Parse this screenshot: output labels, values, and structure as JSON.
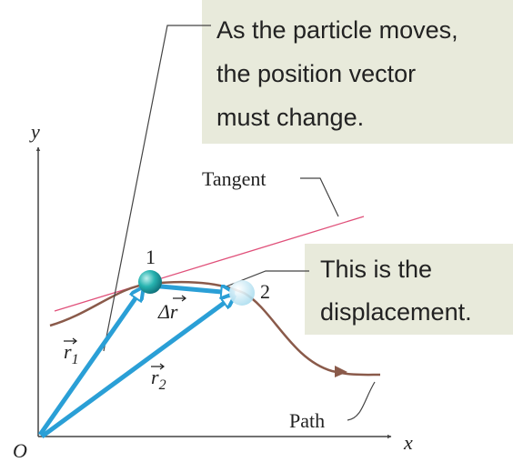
{
  "callouts": [
    {
      "lines": [
        "As the particle moves,",
        "the position vector",
        "must change."
      ]
    },
    {
      "lines": [
        "This is the",
        "displacement."
      ]
    }
  ],
  "axes": {
    "y": "y",
    "x": "x",
    "origin": "O"
  },
  "labels": {
    "tangent": "Tangent",
    "path": "Path",
    "point1": "1",
    "point2": "2",
    "delta_r": "Δr",
    "r1": {
      "symbol": "r",
      "subscript": "1"
    },
    "r2": {
      "symbol": "r",
      "subscript": "2"
    }
  }
}
